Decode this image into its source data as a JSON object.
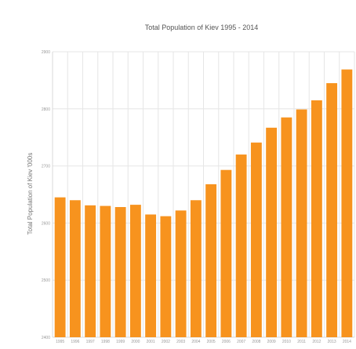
{
  "chart_data": {
    "type": "bar",
    "title": "Total Population of Kiev 1995 - 2014",
    "xlabel": "",
    "ylabel": "Total Population of Kiev '000s",
    "categories": [
      "1995",
      "1996",
      "1997",
      "1998",
      "1999",
      "2000",
      "2001",
      "2002",
      "2003",
      "2004",
      "2005",
      "2006",
      "2007",
      "2008",
      "2009",
      "2010",
      "2011",
      "2012",
      "2013",
      "2014"
    ],
    "values": [
      2645,
      2640,
      2631,
      2630,
      2628,
      2632,
      2615,
      2612,
      2622,
      2640,
      2668,
      2693,
      2720,
      2741,
      2767,
      2785,
      2799,
      2815,
      2845,
      2869
    ],
    "ylim": [
      2400,
      2900
    ],
    "yticks": [
      "2400",
      "2500",
      "2600",
      "2700",
      "2800",
      "2900"
    ],
    "grid": true,
    "legend": "none",
    "bar_color": "#f7931e"
  }
}
